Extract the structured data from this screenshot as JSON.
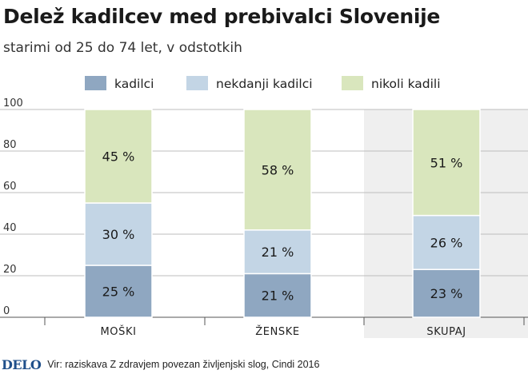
{
  "header": {
    "title": "Delež kadilcev med prebivalci Slovenije",
    "subtitle": "starimi od 25 do 74 let, v odstotkih"
  },
  "footer": {
    "logo": "DELO",
    "source": "Vir: raziskava Z zdravjem povezan življenjski slog, Cindi 2016"
  },
  "colors": {
    "kadilci": "#8fa7c1",
    "nekdanji_kadilci": "#c3d5e5",
    "nikoli_kadilili": "#d9e6bd",
    "highlight_bg": "#efefef",
    "grid": "#bdbdbd"
  },
  "chart_data": {
    "type": "bar",
    "stacked": true,
    "categories": [
      "MOŠKI",
      "ŽENSKE",
      "SKUPAJ"
    ],
    "series": [
      {
        "name": "kadilci",
        "values": [
          25,
          21,
          23
        ],
        "labels": [
          "25 %",
          "21 %",
          "23 %"
        ]
      },
      {
        "name": "nekdanji kadilci",
        "values": [
          30,
          21,
          26
        ],
        "labels": [
          "30 %",
          "21 %",
          "26 %"
        ]
      },
      {
        "name": "nikoli kadili",
        "values": [
          45,
          58,
          51
        ],
        "labels": [
          "45 %",
          "58 %",
          "51 %"
        ]
      }
    ],
    "ylim": [
      0,
      100
    ],
    "yticks": [
      "0",
      "20",
      "40",
      "60",
      "80",
      "100"
    ],
    "legend_position": "top",
    "grid": true,
    "highlighted_category": "SKUPAJ"
  }
}
